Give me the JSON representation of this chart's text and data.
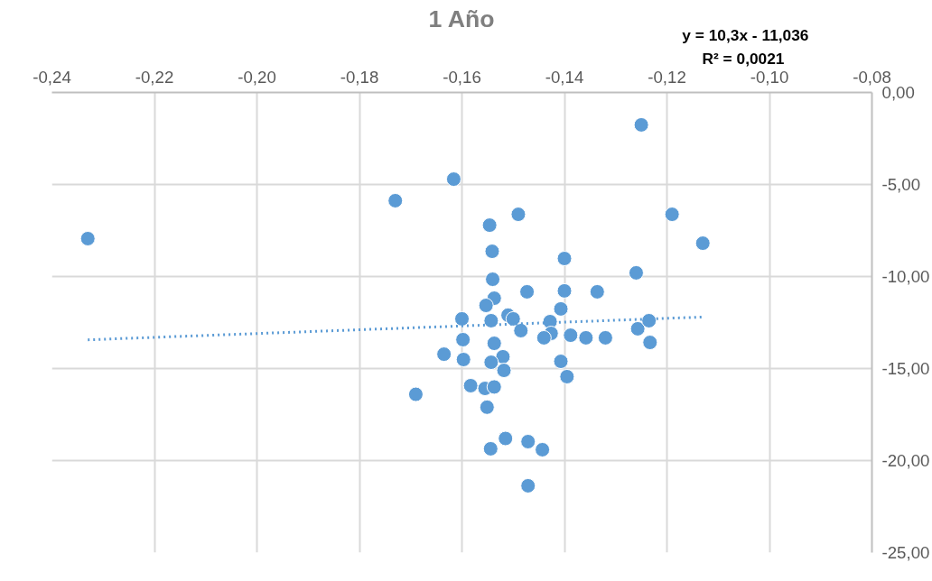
{
  "chart_data": {
    "type": "scatter",
    "title": "1 Año",
    "annotations": [
      "y = 10,3x - 11,036",
      "R² = 0,0021"
    ],
    "series": [
      {
        "type": "scatter",
        "color": "#5b9bd5",
        "marker": "circle",
        "x": [
          -0.233,
          -0.173,
          -0.1616,
          -0.169,
          -0.125,
          -0.119,
          -0.113,
          -0.126,
          -0.1546,
          -0.1541,
          -0.149,
          -0.154,
          -0.14,
          -0.1537,
          -0.1553,
          -0.1473,
          -0.14,
          -0.1336,
          -0.1407,
          -0.16,
          -0.1543,
          -0.151,
          -0.15,
          -0.1485,
          -0.1428,
          -0.1426,
          -0.144,
          -0.1388,
          -0.1358,
          -0.132,
          -0.1257,
          -0.1235,
          -0.1233,
          -0.1598,
          -0.1537,
          -0.1635,
          -0.1597,
          -0.152,
          -0.1543,
          -0.1518,
          -0.1407,
          -0.1395,
          -0.1583,
          -0.1555,
          -0.1537,
          -0.1551,
          -0.1515,
          -0.1471,
          -0.1544,
          -0.1443,
          -0.1471
        ],
        "values": [
          -7.94,
          -5.88,
          -4.71,
          -16.4,
          -1.76,
          -6.62,
          -8.19,
          -9.8,
          -7.21,
          -8.63,
          -6.62,
          -10.15,
          -9.02,
          -11.18,
          -11.57,
          -10.83,
          -10.78,
          -10.83,
          -11.76,
          -12.3,
          -12.4,
          -12.1,
          -12.3,
          -12.94,
          -12.45,
          -13.09,
          -13.33,
          -13.19,
          -13.33,
          -13.33,
          -12.84,
          -12.4,
          -13.58,
          -13.43,
          -13.63,
          -14.22,
          -14.51,
          -14.36,
          -14.66,
          -15.1,
          -14.61,
          -15.44,
          -15.93,
          -16.08,
          -16.0,
          -17.1,
          -18.8,
          -18.97,
          -19.36,
          -19.41,
          -21.37
        ]
      },
      {
        "type": "line",
        "color": "#5b9bd5",
        "line_style": "dotted",
        "marker": "none",
        "x": [
          -0.233,
          -0.113
        ],
        "values": [
          -13.44,
          -12.2
        ]
      }
    ],
    "xlim": [
      -0.24,
      -0.08
    ],
    "xticks": [
      {
        "value": -0.24,
        "label": "-0,24"
      },
      {
        "value": -0.22,
        "label": "-0,22"
      },
      {
        "value": -0.2,
        "label": "-0,20"
      },
      {
        "value": -0.18,
        "label": "-0,18"
      },
      {
        "value": -0.16,
        "label": "-0,16"
      },
      {
        "value": -0.14,
        "label": "-0,14"
      },
      {
        "value": -0.12,
        "label": "-0,12"
      },
      {
        "value": -0.1,
        "label": "-0,10"
      },
      {
        "value": -0.08,
        "label": "-0,08"
      }
    ],
    "ylim": [
      -25,
      0
    ],
    "yticks": [
      {
        "value": 0,
        "label": "0,00"
      },
      {
        "value": -5,
        "label": "-5,00"
      },
      {
        "value": -10,
        "label": "-10,00"
      },
      {
        "value": -15,
        "label": "-15,00"
      },
      {
        "value": -20,
        "label": "-20,00"
      },
      {
        "value": -25,
        "label": "-25,00"
      }
    ],
    "grid": true
  }
}
